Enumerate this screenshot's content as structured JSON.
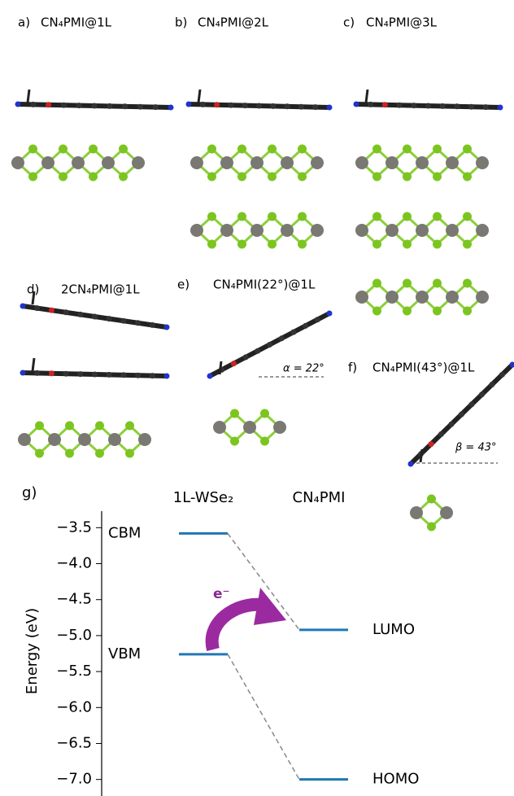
{
  "panels": [
    {
      "letter": "a)",
      "title": "CN₄PMI@1L"
    },
    {
      "letter": "b)",
      "title": "CN₄PMI@2L"
    },
    {
      "letter": "c)",
      "title": "CN₄PMI@3L"
    },
    {
      "letter": "d)",
      "title": "2CN₄PMI@1L"
    },
    {
      "letter": "e)",
      "title": "CN₄PMI(22°)@1L",
      "angle_label": "α = 22°"
    },
    {
      "letter": "f)",
      "title": "CN₄PMI(43°)@1L",
      "angle_label": "β = 43°"
    }
  ],
  "chart_data": {
    "type": "level",
    "letter": "g)",
    "y_label": "Energy (eV)",
    "series": [
      {
        "name": "1L-WSe₂",
        "labels": [
          "CBM",
          "VBM"
        ],
        "values": [
          -3.58,
          -5.26
        ]
      },
      {
        "name": "CN₄PMI",
        "labels": [
          "LUMO",
          "HOMO"
        ],
        "values": [
          -4.92,
          -7.0
        ]
      }
    ],
    "color": "#1f77b4",
    "annotation": "e⁻",
    "ylim": [
      -7.23,
      -3.27
    ],
    "yticks": [
      {
        "value": -3.5,
        "label": "−3.5"
      },
      {
        "value": -4.0,
        "label": "−4.0"
      },
      {
        "value": -4.5,
        "label": "−4.5"
      },
      {
        "value": -5.0,
        "label": "−5.0"
      },
      {
        "value": -5.5,
        "label": "−5.5"
      },
      {
        "value": -6.0,
        "label": "−6.0"
      },
      {
        "value": -6.5,
        "label": "−6.5"
      },
      {
        "value": -7.0,
        "label": "−7.0"
      }
    ]
  }
}
